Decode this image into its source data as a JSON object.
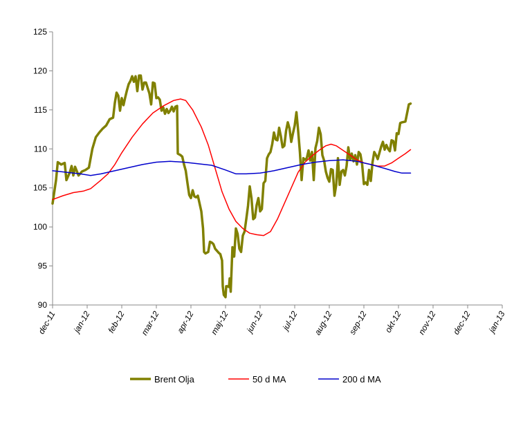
{
  "chart_data": {
    "type": "line",
    "y_ticks": [
      90,
      95,
      100,
      105,
      110,
      115,
      120,
      125
    ],
    "ylim": [
      90,
      125
    ],
    "x_ticks": [
      "dec-11",
      "jan-12",
      "feb-12",
      "mar-12",
      "apr-12",
      "maj-12",
      "jun-12",
      "jul-12",
      "aug-12",
      "sep-12",
      "okt-12",
      "nov-12",
      "dec-12",
      "jan-13"
    ],
    "xlim": [
      0,
      13
    ],
    "grid": false,
    "legend": "bottom",
    "series": [
      {
        "name": "Brent Olja",
        "color": "#808000",
        "width": 3.5,
        "points": [
          [
            0,
            103
          ],
          [
            0.05,
            104.5
          ],
          [
            0.1,
            106
          ],
          [
            0.15,
            108.3
          ],
          [
            0.25,
            108
          ],
          [
            0.35,
            108.2
          ],
          [
            0.4,
            106
          ],
          [
            0.5,
            107
          ],
          [
            0.55,
            107.8
          ],
          [
            0.6,
            106.6
          ],
          [
            0.65,
            107.7
          ],
          [
            0.75,
            106.6
          ],
          [
            0.85,
            107.1
          ],
          [
            0.95,
            107.3
          ],
          [
            1.05,
            107.6
          ],
          [
            1.15,
            110
          ],
          [
            1.25,
            111.5
          ],
          [
            1.35,
            112.1
          ],
          [
            1.45,
            112.6
          ],
          [
            1.55,
            113
          ],
          [
            1.65,
            113.8
          ],
          [
            1.75,
            114
          ],
          [
            1.8,
            115.9
          ],
          [
            1.85,
            117.2
          ],
          [
            1.9,
            116.8
          ],
          [
            1.95,
            114.9
          ],
          [
            2.0,
            116.5
          ],
          [
            2.05,
            115.6
          ],
          [
            2.1,
            116.6
          ],
          [
            2.15,
            117.5
          ],
          [
            2.2,
            118.3
          ],
          [
            2.25,
            118.7
          ],
          [
            2.3,
            119.3
          ],
          [
            2.35,
            118.6
          ],
          [
            2.4,
            119.3
          ],
          [
            2.45,
            117.4
          ],
          [
            2.5,
            119.4
          ],
          [
            2.55,
            119.4
          ],
          [
            2.6,
            117.6
          ],
          [
            2.65,
            118.5
          ],
          [
            2.7,
            118.5
          ],
          [
            2.8,
            117.1
          ],
          [
            2.85,
            115.7
          ],
          [
            2.9,
            118.5
          ],
          [
            2.95,
            118.4
          ],
          [
            3.0,
            116.5
          ],
          [
            3.05,
            116.6
          ],
          [
            3.1,
            116.3
          ],
          [
            3.15,
            114.9
          ],
          [
            3.2,
            115.3
          ],
          [
            3.25,
            114.5
          ],
          [
            3.3,
            115.1
          ],
          [
            3.35,
            114.6
          ],
          [
            3.4,
            114.9
          ],
          [
            3.45,
            115.4
          ],
          [
            3.5,
            114.8
          ],
          [
            3.55,
            115.4
          ],
          [
            3.6,
            115.5
          ],
          [
            3.62,
            109.4
          ],
          [
            3.7,
            109.2
          ],
          [
            3.75,
            109
          ],
          [
            3.8,
            108
          ],
          [
            3.85,
            107.2
          ],
          [
            3.9,
            105.6
          ],
          [
            3.95,
            104.1
          ],
          [
            4.0,
            103.7
          ],
          [
            4.05,
            104.7
          ],
          [
            4.1,
            103.9
          ],
          [
            4.15,
            103.8
          ],
          [
            4.2,
            104
          ],
          [
            4.3,
            102
          ],
          [
            4.35,
            99.8
          ],
          [
            4.38,
            96.8
          ],
          [
            4.42,
            96.6
          ],
          [
            4.5,
            96.8
          ],
          [
            4.55,
            98.1
          ],
          [
            4.6,
            98
          ],
          [
            4.65,
            97.8
          ],
          [
            4.7,
            97.2
          ],
          [
            4.8,
            96.7
          ],
          [
            4.85,
            96.5
          ],
          [
            4.9,
            95.7
          ],
          [
            4.92,
            92.4
          ],
          [
            4.95,
            91.3
          ],
          [
            5.0,
            91
          ],
          [
            5.02,
            92.4
          ],
          [
            5.05,
            92.4
          ],
          [
            5.1,
            92.3
          ],
          [
            5.12,
            93.4
          ],
          [
            5.15,
            91.7
          ],
          [
            5.2,
            97.4
          ],
          [
            5.25,
            96.2
          ],
          [
            5.3,
            99.8
          ],
          [
            5.35,
            99.1
          ],
          [
            5.4,
            97.2
          ],
          [
            5.45,
            96.8
          ],
          [
            5.5,
            98.9
          ],
          [
            5.55,
            99.4
          ],
          [
            5.6,
            101
          ],
          [
            5.65,
            102.7
          ],
          [
            5.7,
            105.2
          ],
          [
            5.75,
            103.7
          ],
          [
            5.8,
            101
          ],
          [
            5.85,
            101.2
          ],
          [
            5.9,
            102.8
          ],
          [
            5.95,
            103.7
          ],
          [
            6.0,
            102
          ],
          [
            6.05,
            102.3
          ],
          [
            6.1,
            105.6
          ],
          [
            6.15,
            105.9
          ],
          [
            6.2,
            108.8
          ],
          [
            6.25,
            109.3
          ],
          [
            6.3,
            109.6
          ],
          [
            6.35,
            110.6
          ],
          [
            6.4,
            112.1
          ],
          [
            6.45,
            111.2
          ],
          [
            6.5,
            111.1
          ],
          [
            6.55,
            112.7
          ],
          [
            6.6,
            111.6
          ],
          [
            6.65,
            110.2
          ],
          [
            6.7,
            110.4
          ],
          [
            6.75,
            112.3
          ],
          [
            6.8,
            113.4
          ],
          [
            6.85,
            112.6
          ],
          [
            6.9,
            110.9
          ],
          [
            6.95,
            112
          ],
          [
            7.0,
            113
          ],
          [
            7.05,
            114.7
          ],
          [
            7.1,
            112.3
          ],
          [
            7.15,
            109.6
          ],
          [
            7.2,
            106
          ],
          [
            7.25,
            108.8
          ],
          [
            7.3,
            108.6
          ],
          [
            7.35,
            108.8
          ],
          [
            7.4,
            109.8
          ],
          [
            7.45,
            108.5
          ],
          [
            7.5,
            109.6
          ],
          [
            7.55,
            106
          ],
          [
            7.6,
            110.1
          ],
          [
            7.65,
            111
          ],
          [
            7.7,
            112.7
          ],
          [
            7.75,
            111.9
          ],
          [
            7.8,
            109.2
          ],
          [
            7.85,
            108.5
          ],
          [
            7.9,
            107.1
          ],
          [
            7.95,
            106.3
          ],
          [
            8.0,
            105.8
          ],
          [
            8.05,
            107.4
          ],
          [
            8.1,
            107.3
          ],
          [
            8.15,
            104
          ],
          [
            8.2,
            105.4
          ],
          [
            8.25,
            108.8
          ],
          [
            8.3,
            105.4
          ],
          [
            8.35,
            107.1
          ],
          [
            8.4,
            107.3
          ],
          [
            8.45,
            106.6
          ],
          [
            8.5,
            107.8
          ],
          [
            8.55,
            110.2
          ],
          [
            8.6,
            108.6
          ],
          [
            8.65,
            109.4
          ],
          [
            8.7,
            108.4
          ],
          [
            8.75,
            109.2
          ],
          [
            8.8,
            108
          ],
          [
            8.85,
            109.6
          ],
          [
            8.9,
            109.3
          ],
          [
            8.95,
            108
          ],
          [
            9.0,
            105.5
          ],
          [
            9.05,
            105.7
          ],
          [
            9.1,
            105.4
          ],
          [
            9.15,
            107.3
          ],
          [
            9.2,
            105.9
          ],
          [
            9.25,
            108.3
          ],
          [
            9.3,
            109.6
          ],
          [
            9.35,
            109.2
          ],
          [
            9.4,
            108.7
          ],
          [
            9.45,
            109.5
          ],
          [
            9.5,
            110.3
          ],
          [
            9.55,
            110.9
          ],
          [
            9.6,
            109.9
          ],
          [
            9.65,
            110.5
          ],
          [
            9.7,
            110
          ],
          [
            9.75,
            109.7
          ],
          [
            9.8,
            111.1
          ],
          [
            9.85,
            111
          ],
          [
            9.9,
            109.8
          ],
          [
            9.95,
            112
          ],
          [
            10.0,
            111.9
          ],
          [
            10.05,
            113.3
          ],
          [
            10.1,
            113.4
          ],
          [
            10.2,
            113.5
          ],
          [
            10.3,
            115.7
          ],
          [
            10.35,
            115.8
          ]
        ]
      },
      {
        "name": "50 d MA",
        "color": "#ff0000",
        "width": 1.5,
        "points": [
          [
            0,
            103.5
          ],
          [
            0.3,
            104
          ],
          [
            0.6,
            104.4
          ],
          [
            0.9,
            104.6
          ],
          [
            1.1,
            104.9
          ],
          [
            1.4,
            106
          ],
          [
            1.6,
            106.8
          ],
          [
            1.8,
            108
          ],
          [
            2.0,
            109.5
          ],
          [
            2.3,
            111.5
          ],
          [
            2.6,
            113.2
          ],
          [
            2.9,
            114.6
          ],
          [
            3.2,
            115.5
          ],
          [
            3.5,
            116.2
          ],
          [
            3.7,
            116.4
          ],
          [
            3.85,
            116.2
          ],
          [
            4.05,
            115
          ],
          [
            4.3,
            112.8
          ],
          [
            4.5,
            110.5
          ],
          [
            4.7,
            107.5
          ],
          [
            4.9,
            104.5
          ],
          [
            5.1,
            102.3
          ],
          [
            5.3,
            100.7
          ],
          [
            5.5,
            99.8
          ],
          [
            5.7,
            99.2
          ],
          [
            5.9,
            99
          ],
          [
            6.1,
            98.9
          ],
          [
            6.3,
            99.4
          ],
          [
            6.5,
            101
          ],
          [
            6.7,
            103
          ],
          [
            6.9,
            105
          ],
          [
            7.1,
            107
          ],
          [
            7.3,
            108.3
          ],
          [
            7.5,
            109.1
          ],
          [
            7.7,
            109.8
          ],
          [
            7.9,
            110.4
          ],
          [
            8.05,
            110.6
          ],
          [
            8.2,
            110.4
          ],
          [
            8.4,
            109.8
          ],
          [
            8.6,
            109.2
          ],
          [
            8.8,
            108.6
          ],
          [
            9.0,
            108.2
          ],
          [
            9.2,
            108
          ],
          [
            9.4,
            107.8
          ],
          [
            9.6,
            107.8
          ],
          [
            9.8,
            108.2
          ],
          [
            10.0,
            108.8
          ],
          [
            10.2,
            109.4
          ],
          [
            10.35,
            109.9
          ]
        ]
      },
      {
        "name": "200 d MA",
        "color": "#0000cc",
        "width": 1.5,
        "points": [
          [
            0,
            107.2
          ],
          [
            0.4,
            107
          ],
          [
            0.8,
            106.8
          ],
          [
            1.1,
            106.6
          ],
          [
            1.4,
            106.8
          ],
          [
            1.8,
            107.2
          ],
          [
            2.2,
            107.6
          ],
          [
            2.6,
            108
          ],
          [
            3.0,
            108.3
          ],
          [
            3.4,
            108.4
          ],
          [
            3.8,
            108.3
          ],
          [
            4.2,
            108.1
          ],
          [
            4.6,
            107.9
          ],
          [
            5.0,
            107.3
          ],
          [
            5.3,
            106.8
          ],
          [
            5.6,
            106.8
          ],
          [
            6.0,
            106.9
          ],
          [
            6.4,
            107.2
          ],
          [
            6.8,
            107.6
          ],
          [
            7.2,
            108
          ],
          [
            7.6,
            108.3
          ],
          [
            8.0,
            108.5
          ],
          [
            8.4,
            108.6
          ],
          [
            8.8,
            108.4
          ],
          [
            9.2,
            108
          ],
          [
            9.6,
            107.5
          ],
          [
            9.9,
            107.1
          ],
          [
            10.1,
            106.9
          ],
          [
            10.35,
            106.9
          ]
        ]
      }
    ]
  }
}
